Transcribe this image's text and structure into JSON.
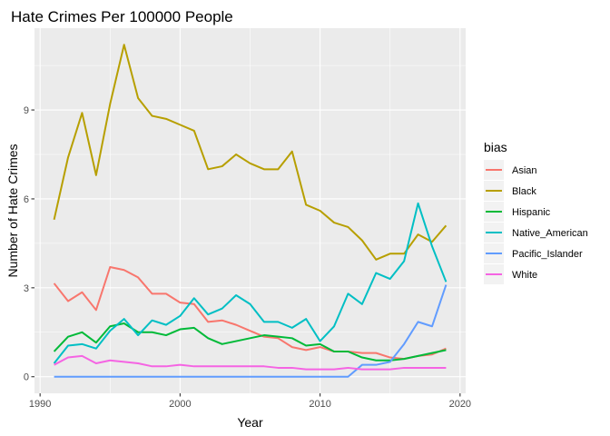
{
  "chart_data": {
    "type": "line",
    "title": "Hate Crimes Per 100000 People",
    "xlabel": "Year",
    "ylabel": "Number of Hate Crimes",
    "xlim": [
      1989.6,
      2020.4
    ],
    "ylim": [
      -0.56,
      11.76
    ],
    "x_ticks": [
      1990,
      2000,
      2010,
      2020
    ],
    "y_ticks": [
      0,
      3,
      6,
      9
    ],
    "grid": true,
    "legend": {
      "title": "bias",
      "position": "right"
    },
    "x": [
      1991,
      1992,
      1993,
      1994,
      1995,
      1996,
      1997,
      1998,
      1999,
      2000,
      2001,
      2002,
      2003,
      2004,
      2005,
      2006,
      2007,
      2008,
      2009,
      2010,
      2011,
      2012,
      2013,
      2014,
      2015,
      2016,
      2017,
      2018,
      2019
    ],
    "series": [
      {
        "name": "Asian",
        "color": "#F8766D",
        "values": [
          3.15,
          2.55,
          2.85,
          2.25,
          3.7,
          3.6,
          3.35,
          2.8,
          2.8,
          2.5,
          2.45,
          1.85,
          1.9,
          1.75,
          1.55,
          1.35,
          1.3,
          1.0,
          0.9,
          1.0,
          0.85,
          0.85,
          0.8,
          0.8,
          0.65,
          0.6,
          0.7,
          0.75,
          0.95
        ]
      },
      {
        "name": "Black",
        "color": "#B79F00",
        "values": [
          5.3,
          7.4,
          8.9,
          6.8,
          9.2,
          11.2,
          9.4,
          8.8,
          8.7,
          8.5,
          8.3,
          7.0,
          7.1,
          7.5,
          7.2,
          7.0,
          7.0,
          7.6,
          5.8,
          5.6,
          5.2,
          5.05,
          4.6,
          3.95,
          4.15,
          4.15,
          4.8,
          4.55,
          5.1
        ]
      },
      {
        "name": "Hispanic",
        "color": "#00BA38",
        "values": [
          0.85,
          1.35,
          1.5,
          1.15,
          1.7,
          1.8,
          1.5,
          1.5,
          1.4,
          1.6,
          1.65,
          1.3,
          1.1,
          1.2,
          1.3,
          1.4,
          1.35,
          1.3,
          1.05,
          1.1,
          0.85,
          0.85,
          0.65,
          0.55,
          0.55,
          0.6,
          0.7,
          0.8,
          0.9
        ]
      },
      {
        "name": "Native_American",
        "color": "#00BFC4",
        "values": [
          0.45,
          1.05,
          1.1,
          0.95,
          1.55,
          1.95,
          1.4,
          1.9,
          1.75,
          2.05,
          2.65,
          2.1,
          2.3,
          2.75,
          2.45,
          1.85,
          1.85,
          1.65,
          1.95,
          1.2,
          1.7,
          2.8,
          2.45,
          3.5,
          3.3,
          3.9,
          5.85,
          4.4,
          3.2
        ]
      },
      {
        "name": "Pacific_Islander",
        "color": "#619CFF",
        "values": [
          0,
          0,
          0,
          0,
          0,
          0,
          0,
          0,
          0,
          0,
          0,
          0,
          0,
          0,
          0,
          0,
          0,
          0,
          0,
          0,
          0,
          0,
          0.4,
          0.4,
          0.5,
          1.1,
          1.85,
          1.7,
          3.1
        ]
      },
      {
        "name": "White",
        "color": "#F564E3",
        "values": [
          0.4,
          0.65,
          0.7,
          0.45,
          0.55,
          0.5,
          0.45,
          0.35,
          0.35,
          0.4,
          0.35,
          0.35,
          0.35,
          0.35,
          0.35,
          0.35,
          0.3,
          0.3,
          0.25,
          0.25,
          0.25,
          0.3,
          0.25,
          0.25,
          0.25,
          0.3,
          0.3,
          0.3,
          0.3
        ]
      }
    ]
  }
}
